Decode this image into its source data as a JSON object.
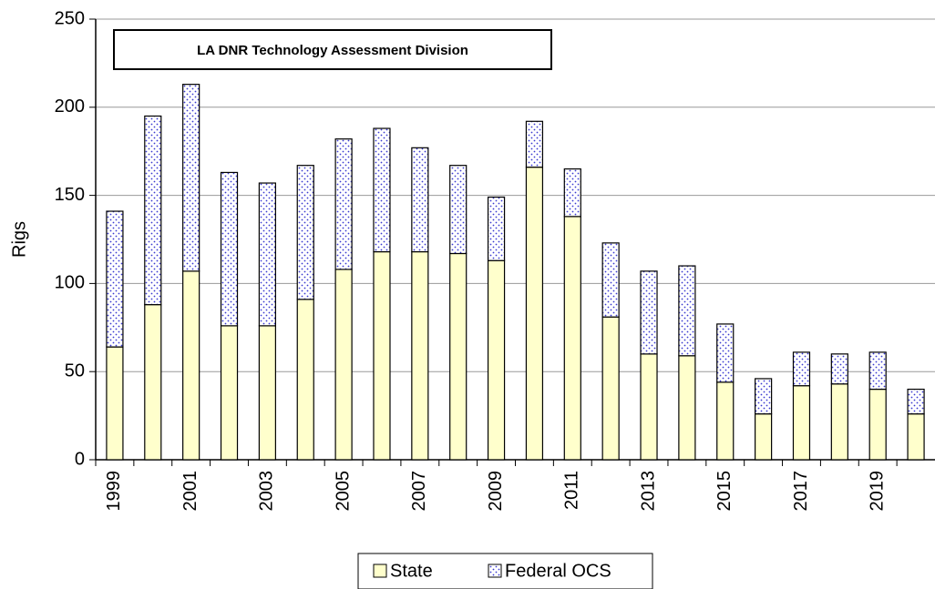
{
  "chart_data": {
    "type": "stacked_bar",
    "annotation": "LA DNR Technology Assessment Division",
    "y_label": "Rigs",
    "categories": [
      "1999",
      null,
      "2001",
      null,
      "2003",
      null,
      "2005",
      null,
      "2007",
      null,
      "2009",
      null,
      "2011",
      null,
      "2013",
      null,
      "2015",
      null,
      "2017",
      null,
      "2019",
      null
    ],
    "series": [
      {
        "name": "State",
        "color": "#ffffcc",
        "values": [
          64,
          88,
          107,
          76,
          76,
          91,
          108,
          118,
          118,
          117,
          113,
          166,
          138,
          81,
          60,
          59,
          44,
          26,
          42,
          43,
          40,
          26
        ]
      },
      {
        "name": "Federal OCS",
        "color": "#3a3ad0",
        "values": [
          77,
          107,
          106,
          87,
          81,
          76,
          74,
          70,
          59,
          50,
          36,
          26,
          27,
          42,
          47,
          51,
          33,
          20,
          19,
          17,
          21,
          14
        ]
      }
    ],
    "ylim": [
      0,
      250
    ],
    "yticks": [
      0,
      50,
      100,
      150,
      200,
      250
    ],
    "grid": true,
    "legend": "bottom"
  }
}
